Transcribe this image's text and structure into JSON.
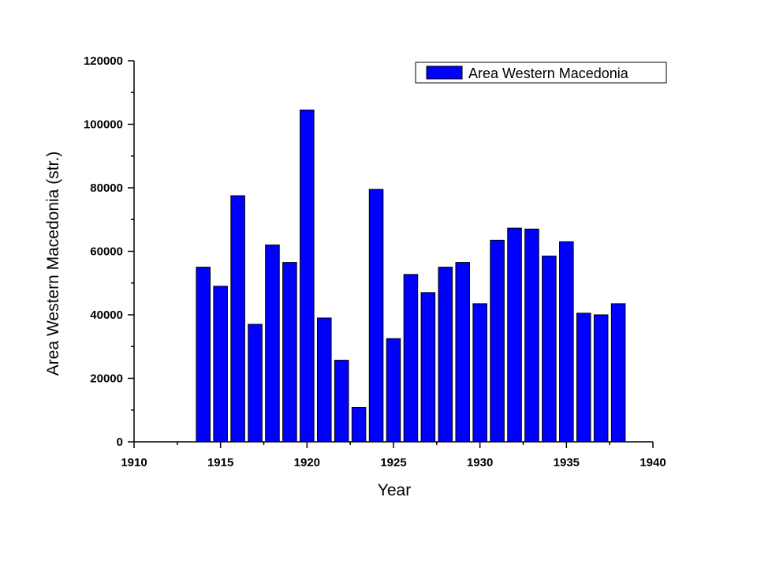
{
  "chart_data": {
    "type": "bar",
    "title": "",
    "xlabel": "Year",
    "ylabel": "Area Western Macedonia (str.)",
    "xlim": [
      1910,
      1940
    ],
    "ylim": [
      0,
      120000
    ],
    "x_ticks": [
      "1910",
      "1915",
      "1920",
      "1925",
      "1930",
      "1935",
      "1940"
    ],
    "y_ticks": [
      "0",
      "20000",
      "40000",
      "60000",
      "80000",
      "100000",
      "120000"
    ],
    "grid": false,
    "legend_position": "top-right",
    "series": [
      {
        "name": "Area Western Macedonia",
        "color": "#0000ff",
        "x": [
          1914,
          1915,
          1916,
          1917,
          1918,
          1919,
          1920,
          1921,
          1922,
          1923,
          1924,
          1925,
          1926,
          1927,
          1928,
          1929,
          1930,
          1931,
          1932,
          1933,
          1934,
          1935,
          1936,
          1937,
          1938
        ],
        "values": [
          55000,
          49000,
          77500,
          37000,
          62000,
          56500,
          104500,
          39000,
          25700,
          10800,
          79500,
          32500,
          52700,
          47000,
          55000,
          56500,
          43500,
          63500,
          67300,
          67000,
          58500,
          63000,
          40500,
          40000,
          43500
        ]
      }
    ]
  }
}
